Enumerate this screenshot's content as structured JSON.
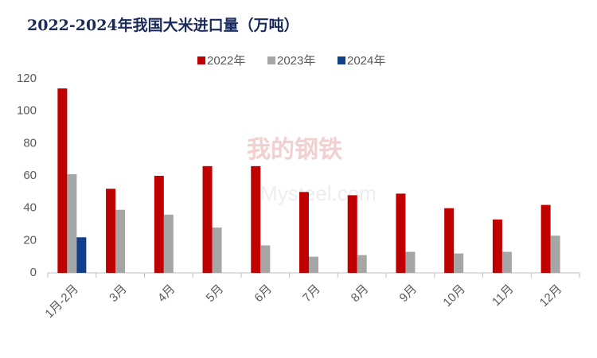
{
  "chart_data": {
    "type": "bar",
    "title": "2022-2024年我国大米进口量（万吨）",
    "watermark": [
      "我的钢铁",
      "Mysteel.com"
    ],
    "categories": [
      "1月-2月",
      "3月",
      "4月",
      "5月",
      "6月",
      "7月",
      "8月",
      "9月",
      "10月",
      "11月",
      "12月"
    ],
    "series": [
      {
        "name": "2022年",
        "color": "#c00000",
        "values": [
          114,
          52,
          60,
          66,
          66,
          50,
          48,
          49,
          40,
          33,
          42
        ]
      },
      {
        "name": "2023年",
        "color": "#a6a6a6",
        "values": [
          61,
          39,
          36,
          28,
          17,
          10,
          11,
          13,
          12,
          13,
          23
        ]
      },
      {
        "name": "2024年",
        "color": "#123f8c",
        "values": [
          22,
          null,
          null,
          null,
          null,
          null,
          null,
          null,
          null,
          null,
          null
        ]
      }
    ],
    "ylim": [
      0,
      120
    ],
    "yticks": [
      0,
      20,
      40,
      60,
      80,
      100,
      120
    ],
    "grid": false,
    "legend": "top"
  }
}
